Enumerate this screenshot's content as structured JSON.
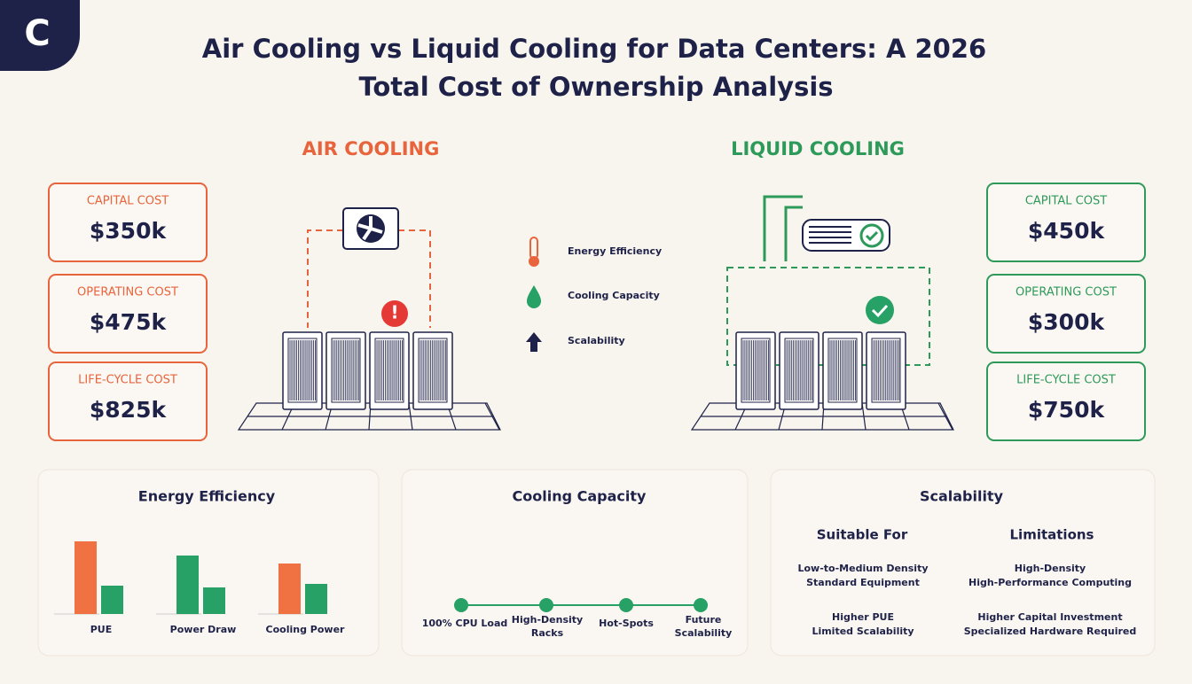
{
  "logo": "C",
  "title": [
    "Air Cooling vs Liquid Cooling for Data Centers: A 2026",
    "Total Cost of Ownership Analysis"
  ],
  "air": {
    "heading": "AIR COOLING",
    "color": "#e8643c",
    "cards": [
      {
        "label": "CAPITAL COST",
        "value": "$350k"
      },
      {
        "label": "OPERATING COST",
        "value": "$475k"
      },
      {
        "label": "LIFE-CYCLE COST",
        "value": "$825k"
      }
    ]
  },
  "liquid": {
    "heading": "LIQUID COOLING",
    "color": "#2e9a5a",
    "cards": [
      {
        "label": "CAPITAL COST",
        "value": "$450k"
      },
      {
        "label": "OPERATING COST",
        "value": "$300k"
      },
      {
        "label": "LIFE-CYCLE COST",
        "value": "$750k"
      }
    ]
  },
  "legend": [
    "Energy Efficiency",
    "Cooling Capacity",
    "Scalability"
  ],
  "energy_efficiency": {
    "title": "Energy Efficiency",
    "groups": [
      {
        "label": "PUE",
        "bars": [
          {
            "value": 82,
            "color": "#f07242"
          },
          {
            "value": 32,
            "color": "#27a165"
          }
        ]
      },
      {
        "label": "Power Draw",
        "bars": [
          {
            "value": 66,
            "color": "#27a165"
          },
          {
            "value": 30,
            "color": "#27a165"
          }
        ]
      },
      {
        "label": "Cooling Power",
        "bars": [
          {
            "value": 57,
            "color": "#f07242"
          },
          {
            "value": 34,
            "color": "#27a165"
          }
        ]
      }
    ]
  },
  "cooling_capacity": {
    "title": "Cooling Capacity",
    "steps": [
      [
        "100% CPU Load"
      ],
      [
        "High-Density",
        "Racks"
      ],
      [
        "Hot-Spots"
      ],
      [
        "Future",
        "Scalability"
      ]
    ]
  },
  "scalability": {
    "title": "Scalability",
    "columns": [
      {
        "heading": "Suitable For",
        "groups": [
          [
            "Low-to-Medium Density",
            "Standard Equipment"
          ],
          [
            "Higher PUE",
            "Limited Scalability"
          ]
        ]
      },
      {
        "heading": "Limitations",
        "groups": [
          [
            "High-Density",
            "High-Performance Computing"
          ],
          [
            "Higher Capital Investment",
            "Specialized Hardware Required"
          ]
        ]
      }
    ]
  }
}
